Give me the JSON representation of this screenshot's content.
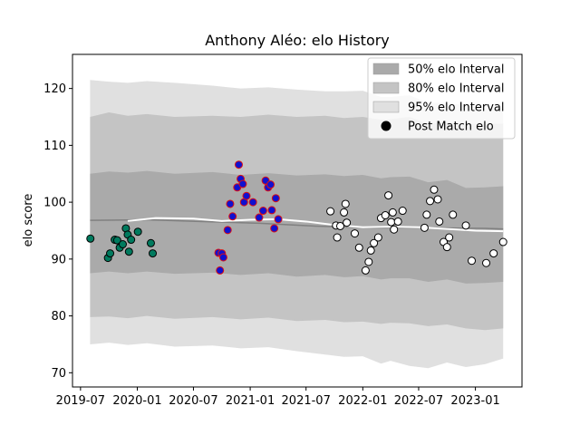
{
  "chart_data": {
    "type": "scatter",
    "title": "Anthony Aléo: elo History",
    "xlabel": "",
    "ylabel": "elo score",
    "x_range": [
      "2019-06-05",
      "2023-06-01"
    ],
    "ylim": [
      67.5,
      126.0
    ],
    "y_ticks": [
      70,
      80,
      90,
      100,
      110,
      120
    ],
    "x_ticks": [
      {
        "date": "2019-07-01",
        "label": "2019-07"
      },
      {
        "date": "2020-01-01",
        "label": "2020-01"
      },
      {
        "date": "2020-07-01",
        "label": "2020-07"
      },
      {
        "date": "2021-01-01",
        "label": "2021-01"
      },
      {
        "date": "2021-07-01",
        "label": "2021-07"
      },
      {
        "date": "2022-01-01",
        "label": "2022-01"
      },
      {
        "date": "2022-07-01",
        "label": "2022-07"
      },
      {
        "date": "2023-01-01",
        "label": "2023-01"
      }
    ],
    "grid": false,
    "legend_position": "top-right",
    "legend": [
      {
        "label": "50% elo Interval",
        "kind": "patch",
        "color": "#aaaaaa"
      },
      {
        "label": "80% elo Interval",
        "kind": "patch",
        "color": "#c4c4c4"
      },
      {
        "label": "95% elo Interval",
        "kind": "patch",
        "color": "#e0e0e0"
      },
      {
        "label": "Post Match elo",
        "kind": "marker",
        "color": "#000000"
      }
    ],
    "bands": {
      "dates": [
        "2019-08-01",
        "2019-10-01",
        "2019-12-01",
        "2020-02-01",
        "2020-05-01",
        "2020-09-01",
        "2020-12-01",
        "2021-03-01",
        "2021-06-01",
        "2021-09-01",
        "2021-11-01",
        "2022-01-01",
        "2022-03-01",
        "2022-04-01",
        "2022-06-01",
        "2022-08-01",
        "2022-10-01",
        "2022-12-01",
        "2023-02-01",
        "2023-04-01"
      ],
      "band95_upper": [
        121.5,
        121.2,
        121.0,
        121.3,
        121.0,
        120.5,
        120.0,
        120.2,
        119.8,
        119.5,
        119.5,
        119.6,
        118.5,
        118.5,
        118.8,
        117.5,
        117.5,
        117.0,
        116.5,
        116.5
      ],
      "band80_upper": [
        115.0,
        115.8,
        115.2,
        115.5,
        115.0,
        115.2,
        115.0,
        115.4,
        115.0,
        115.2,
        114.8,
        115.0,
        114.5,
        114.6,
        115.0,
        113.8,
        114.0,
        113.7,
        113.8,
        113.8
      ],
      "band50_upper": [
        105.0,
        105.4,
        105.2,
        105.5,
        105.0,
        105.3,
        104.8,
        105.1,
        104.7,
        104.9,
        104.6,
        104.8,
        104.2,
        104.4,
        104.5,
        103.5,
        103.9,
        102.5,
        102.6,
        102.8
      ],
      "band50_lower": [
        87.5,
        87.8,
        87.5,
        87.8,
        87.4,
        87.6,
        87.2,
        87.5,
        86.9,
        87.2,
        86.8,
        87.0,
        86.4,
        86.6,
        86.6,
        86.0,
        86.4,
        85.7,
        85.8,
        86.0
      ],
      "band80_lower": [
        79.8,
        79.9,
        79.6,
        80.0,
        79.5,
        79.8,
        79.4,
        79.7,
        79.1,
        79.3,
        78.9,
        79.0,
        78.6,
        78.8,
        78.7,
        78.2,
        78.5,
        77.8,
        77.5,
        77.8
      ],
      "band95_lower": [
        75.0,
        75.3,
        74.9,
        75.2,
        74.6,
        74.8,
        74.3,
        74.5,
        73.8,
        73.2,
        72.8,
        72.9,
        71.6,
        72.1,
        71.2,
        70.8,
        71.8,
        71.0,
        71.5,
        72.5
      ]
    },
    "mean_line": {
      "color": "#808080",
      "dates": [
        "2019-08-01",
        "2020-02-01",
        "2020-08-01",
        "2021-02-01",
        "2021-08-01",
        "2022-02-01",
        "2022-08-01",
        "2023-02-01",
        "2023-04-01"
      ],
      "values": [
        96.8,
        96.9,
        96.6,
        96.3,
        95.8,
        95.5,
        95.5,
        95.4,
        95.3
      ]
    },
    "running_line": {
      "color": "#ffffff",
      "dates": [
        "2019-12-01",
        "2020-03-01",
        "2020-07-01",
        "2020-10-01",
        "2021-01-01",
        "2021-04-01",
        "2021-07-01",
        "2021-10-01",
        "2022-01-01",
        "2022-04-01",
        "2022-07-01",
        "2022-10-01",
        "2023-01-01",
        "2023-04-01"
      ],
      "values": [
        96.7,
        97.2,
        97.1,
        96.7,
        96.9,
        97.0,
        96.6,
        96.0,
        95.6,
        95.7,
        95.6,
        95.3,
        95.0,
        94.9
      ]
    },
    "series": [
      {
        "fill": "#007a5e",
        "stroke": "#000000",
        "dates": [
          "2019-08-02",
          "2019-09-28",
          "2019-10-05",
          "2019-10-20",
          "2019-10-28",
          "2019-11-05",
          "2019-11-15",
          "2019-11-25",
          "2019-12-01",
          "2019-12-05",
          "2019-12-12",
          "2020-01-03",
          "2020-02-14",
          "2020-02-20"
        ],
        "values": [
          93.6,
          90.2,
          91.0,
          93.4,
          93.3,
          92.0,
          92.6,
          95.4,
          94.3,
          91.3,
          93.4,
          94.8,
          92.8,
          91.0
        ]
      },
      {
        "fill": "#1010d0",
        "stroke": "#dd1111",
        "dates": [
          "2020-09-20",
          "2020-09-25",
          "2020-10-01",
          "2020-10-06",
          "2020-10-20",
          "2020-10-28",
          "2020-11-05",
          "2020-11-20",
          "2020-11-25",
          "2020-12-01",
          "2020-12-08",
          "2020-12-12",
          "2020-12-20",
          "2021-01-10",
          "2021-01-30",
          "2021-02-12",
          "2021-02-20",
          "2021-02-28",
          "2021-03-08",
          "2021-03-12",
          "2021-03-20",
          "2021-03-25",
          "2021-04-02"
        ],
        "values": [
          91.1,
          88.0,
          91.0,
          90.3,
          95.1,
          99.7,
          97.5,
          102.6,
          106.6,
          104.1,
          103.2,
          100.0,
          101.1,
          100.0,
          97.3,
          98.5,
          103.8,
          102.6,
          103.1,
          98.6,
          95.4,
          100.7,
          97.0
        ]
      },
      {
        "fill": "#ffffff",
        "stroke": "#000000",
        "dates": [
          "2021-09-18",
          "2021-10-06",
          "2021-10-10",
          "2021-10-20",
          "2021-11-01",
          "2021-11-06",
          "2021-11-10",
          "2021-12-06",
          "2021-12-20",
          "2022-01-10",
          "2022-01-20",
          "2022-01-27",
          "2022-02-06",
          "2022-02-20",
          "2022-03-01",
          "2022-03-15",
          "2022-03-25",
          "2022-04-03",
          "2022-04-08",
          "2022-04-12",
          "2022-04-25",
          "2022-05-10",
          "2022-07-20",
          "2022-07-27",
          "2022-08-07",
          "2022-08-20",
          "2022-09-01",
          "2022-09-06",
          "2022-09-20",
          "2022-10-01",
          "2022-10-08",
          "2022-10-20",
          "2022-12-01",
          "2022-12-20",
          "2023-02-05",
          "2023-03-01"
        ],
        "values": [
          98.4,
          95.9,
          93.8,
          95.8,
          98.2,
          99.7,
          96.4,
          94.5,
          92.0,
          88.0,
          89.5,
          91.5,
          92.8,
          93.8,
          97.2,
          97.7,
          101.2,
          96.5,
          98.2,
          95.2,
          96.6,
          98.5,
          95.5,
          97.8,
          100.2,
          102.2,
          100.5,
          96.6,
          93.0,
          92.1,
          93.8,
          97.8,
          95.9,
          89.7,
          89.3,
          91.0
        ]
      }
    ],
    "late_points": {
      "fill": "#ffffff",
      "stroke": "#000000",
      "dates": [
        "2023-04-01"
      ],
      "values": [
        93.0
      ]
    }
  }
}
